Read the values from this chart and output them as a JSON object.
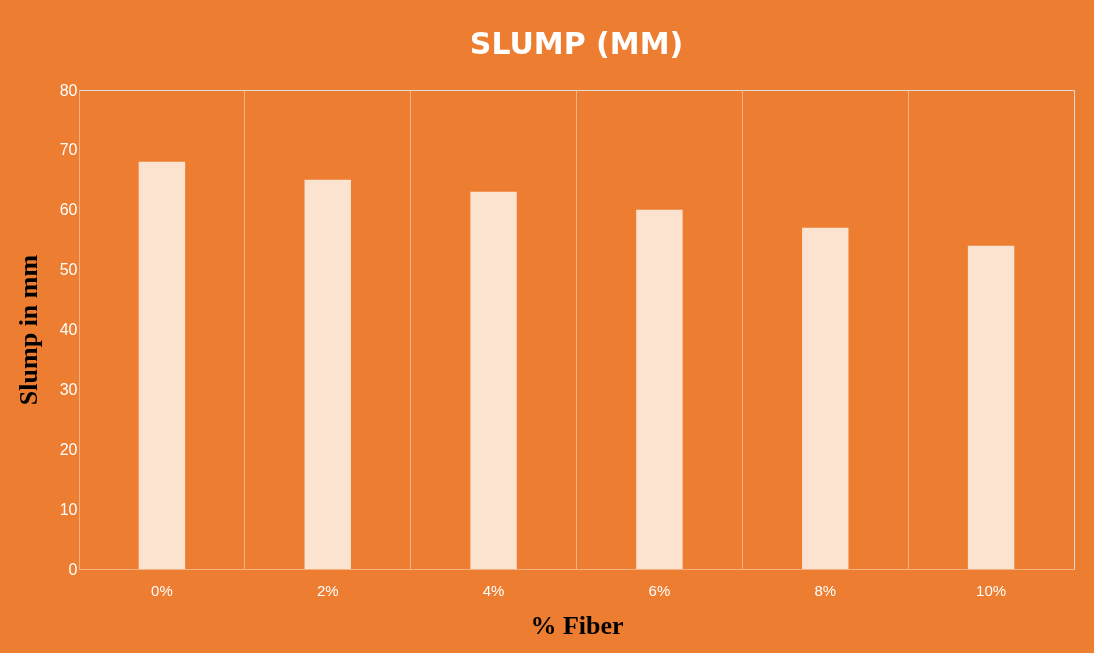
{
  "chart_data": {
    "type": "bar",
    "title": "SLUMP (MM)",
    "xlabel": "%  Fiber",
    "ylabel": "Slump in mm",
    "categories": [
      "0%",
      "2%",
      "4%",
      "6%",
      "8%",
      "10%"
    ],
    "series": [
      {
        "color": "#fbe3d0",
        "values": [
          68,
          65,
          63,
          60,
          57,
          54
        ]
      }
    ],
    "ylim": [
      0,
      80
    ],
    "yticks": [
      0,
      10,
      20,
      30,
      40,
      50,
      60,
      70,
      80
    ],
    "grid": "x",
    "legend": false
  }
}
